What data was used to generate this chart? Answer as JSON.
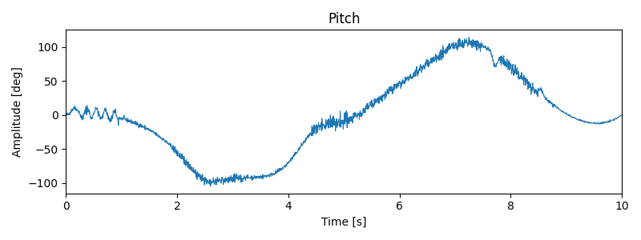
{
  "title": "Pitch",
  "xlabel": "Time [s]",
  "ylabel": "Amplitude [deg]",
  "xlim": [
    0,
    10
  ],
  "ylim": [
    -115,
    125
  ],
  "line_color": "#1f77b4",
  "line_width": 0.8,
  "figsize": [
    8.0,
    3.0
  ],
  "dpi": 100,
  "seed": 42,
  "n_points": 2000,
  "t_start": 0.0,
  "t_end": 10.0,
  "base_noise": 1.5
}
